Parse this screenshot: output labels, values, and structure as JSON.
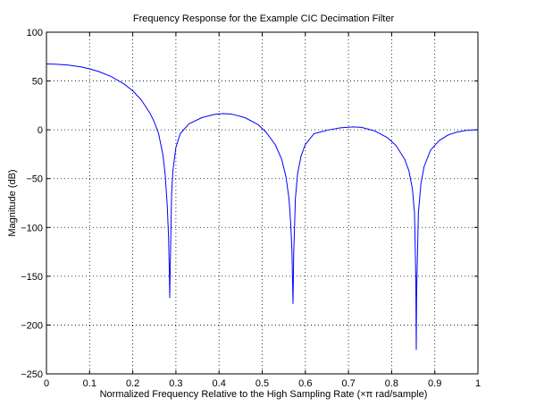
{
  "chart_data": {
    "type": "line",
    "title": "Frequency Response for the Example CIC Decimation Filter",
    "xlabel": "Normalized Frequency Relative to the High Sampling Rate (×π rad/sample)",
    "ylabel": "Magnitude (dB)",
    "xlim": [
      0,
      1
    ],
    "ylim": [
      -250,
      100
    ],
    "xticks": [
      0,
      0.1,
      0.2,
      0.3,
      0.4,
      0.5,
      0.6,
      0.7,
      0.8,
      0.9,
      1
    ],
    "xtick_labels": [
      "0",
      "0.1",
      "0.2",
      "0.3",
      "0.4",
      "0.5",
      "0.6",
      "0.7",
      "0.8",
      "0.9",
      "1"
    ],
    "yticks": [
      -250,
      -200,
      -150,
      -100,
      -50,
      0,
      50,
      100
    ],
    "ytick_labels": [
      "−250",
      "−200",
      "−150",
      "−100",
      "−50",
      "0",
      "50",
      "100"
    ],
    "grid": true,
    "grid_style": "dotted",
    "series": [
      {
        "color": "#0000ff",
        "description": "CIC magnitude response with nulls near 0.286, 0.571, 0.857",
        "points": [
          [
            0.0,
            67.5
          ],
          [
            0.02,
            67.3
          ],
          [
            0.05,
            66.3
          ],
          [
            0.08,
            64.5
          ],
          [
            0.1,
            62.4
          ],
          [
            0.12,
            59.9
          ],
          [
            0.15,
            54.6
          ],
          [
            0.18,
            46.9
          ],
          [
            0.2,
            40.0
          ],
          [
            0.22,
            30.5
          ],
          [
            0.24,
            17.0
          ],
          [
            0.25,
            8.0
          ],
          [
            0.26,
            -4.0
          ],
          [
            0.27,
            -26.0
          ],
          [
            0.275,
            -45.0
          ],
          [
            0.28,
            -78.0
          ],
          [
            0.283,
            -110.0
          ],
          [
            0.285,
            -150.0
          ],
          [
            0.2857,
            -172.0
          ],
          [
            0.287,
            -138.0
          ],
          [
            0.29,
            -66.0
          ],
          [
            0.293,
            -42.0
          ],
          [
            0.3,
            -18.0
          ],
          [
            0.31,
            -4.0
          ],
          [
            0.33,
            6.0
          ],
          [
            0.36,
            12.5
          ],
          [
            0.39,
            15.8
          ],
          [
            0.41,
            16.6
          ],
          [
            0.43,
            16.0
          ],
          [
            0.46,
            12.5
          ],
          [
            0.49,
            5.5
          ],
          [
            0.51,
            -3.0
          ],
          [
            0.53,
            -15.0
          ],
          [
            0.545,
            -30.0
          ],
          [
            0.555,
            -48.0
          ],
          [
            0.562,
            -70.0
          ],
          [
            0.566,
            -95.0
          ],
          [
            0.569,
            -125.0
          ],
          [
            0.5714,
            -178.0
          ],
          [
            0.573,
            -128.0
          ],
          [
            0.577,
            -70.0
          ],
          [
            0.582,
            -45.0
          ],
          [
            0.59,
            -27.0
          ],
          [
            0.6,
            -15.0
          ],
          [
            0.62,
            -4.0
          ],
          [
            0.65,
            -0.5
          ],
          [
            0.68,
            2.0
          ],
          [
            0.71,
            3.0
          ],
          [
            0.73,
            2.5
          ],
          [
            0.76,
            -1.0
          ],
          [
            0.79,
            -8.0
          ],
          [
            0.81,
            -16.0
          ],
          [
            0.83,
            -30.0
          ],
          [
            0.84,
            -42.0
          ],
          [
            0.848,
            -60.0
          ],
          [
            0.853,
            -85.0
          ],
          [
            0.856,
            -150.0
          ],
          [
            0.8571,
            -225.0
          ],
          [
            0.858,
            -165.0
          ],
          [
            0.862,
            -85.0
          ],
          [
            0.868,
            -55.0
          ],
          [
            0.875,
            -38.0
          ],
          [
            0.89,
            -21.0
          ],
          [
            0.91,
            -11.0
          ],
          [
            0.93,
            -5.5
          ],
          [
            0.95,
            -2.5
          ],
          [
            0.97,
            -0.8
          ],
          [
            0.99,
            -0.1
          ],
          [
            1.0,
            0.0
          ]
        ]
      }
    ]
  }
}
